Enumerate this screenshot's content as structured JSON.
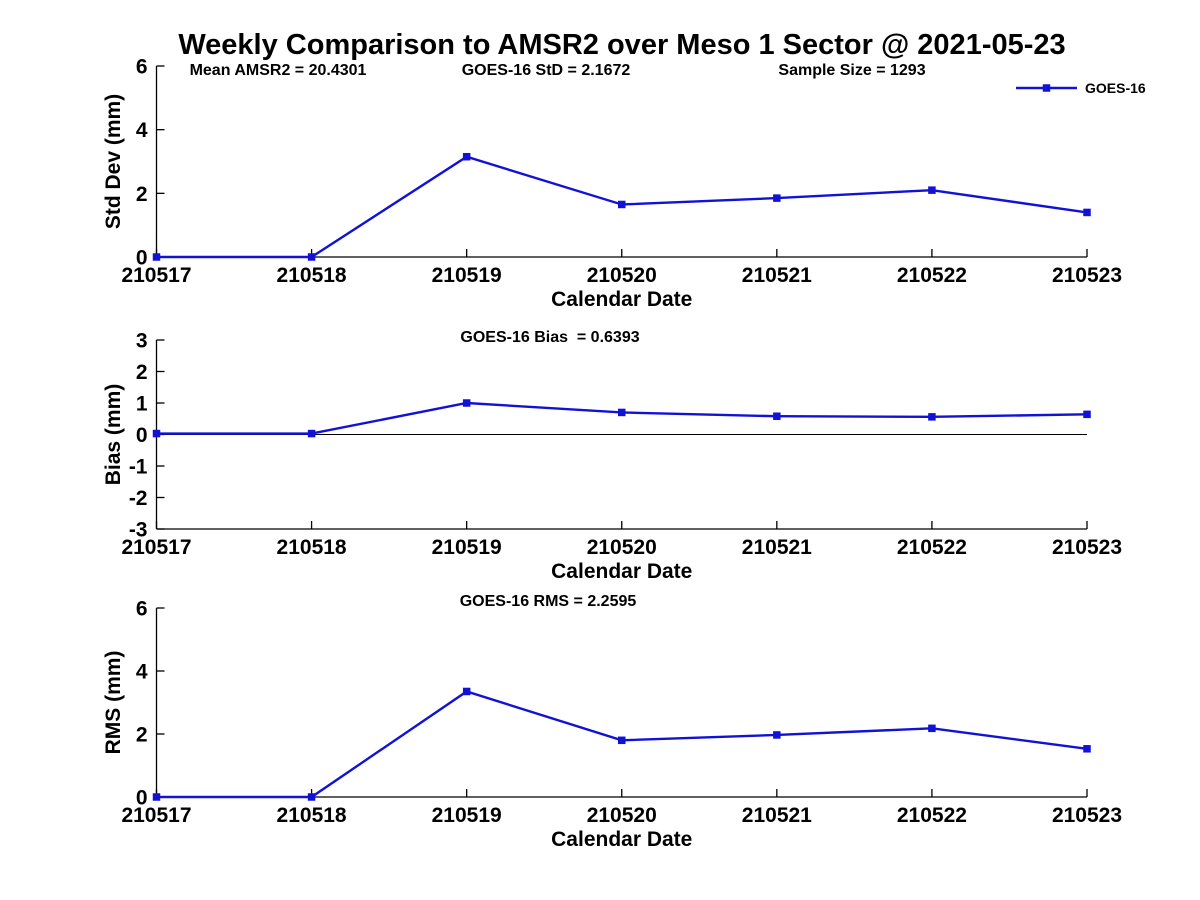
{
  "title": "Weekly Comparison to AMSR2 over Meso 1 Sector @ 2021-05-23",
  "x_axis_label": "Calendar Date",
  "categories": [
    "210517",
    "210518",
    "210519",
    "210520",
    "210521",
    "210522",
    "210523"
  ],
  "legend": {
    "label": "GOES-16",
    "position": "top-right"
  },
  "colors": {
    "line": "#1212d7",
    "axis": "#000000",
    "text": "#000000",
    "background": "#ffffff"
  },
  "chart_data": [
    {
      "id": "std-dev",
      "type": "line",
      "ylabel": "Std Dev (mm)",
      "xlabel": "Calendar Date",
      "ylim": [
        0,
        6
      ],
      "yticks": [
        0,
        2,
        4,
        6
      ],
      "grid": false,
      "zero_line": false,
      "annotations": [
        "Mean AMSR2 = 20.4301",
        "GOES-16 StD = 2.1672",
        "Sample Size = 1293"
      ],
      "series": [
        {
          "name": "GOES-16",
          "values": [
            0,
            0,
            3.15,
            1.65,
            1.85,
            2.1,
            1.4
          ]
        }
      ]
    },
    {
      "id": "bias",
      "type": "line",
      "ylabel": "Bias (mm)",
      "xlabel": "Calendar Date",
      "ylim": [
        -3,
        3
      ],
      "yticks": [
        -3,
        -2,
        -1,
        0,
        1,
        2,
        3
      ],
      "grid": false,
      "zero_line": true,
      "annotations": [
        "GOES-16 Bias  = 0.6393"
      ],
      "series": [
        {
          "name": "GOES-16",
          "values": [
            0.03,
            0.03,
            1.0,
            0.7,
            0.58,
            0.56,
            0.64
          ]
        }
      ]
    },
    {
      "id": "rms",
      "type": "line",
      "ylabel": "RMS (mm)",
      "xlabel": "Calendar Date",
      "ylim": [
        0,
        6
      ],
      "yticks": [
        0,
        2,
        4,
        6
      ],
      "grid": false,
      "zero_line": false,
      "annotations": [
        "GOES-16 RMS = 2.2595"
      ],
      "series": [
        {
          "name": "GOES-16",
          "values": [
            0,
            0,
            3.35,
            1.8,
            1.97,
            2.18,
            1.53
          ]
        }
      ]
    }
  ]
}
